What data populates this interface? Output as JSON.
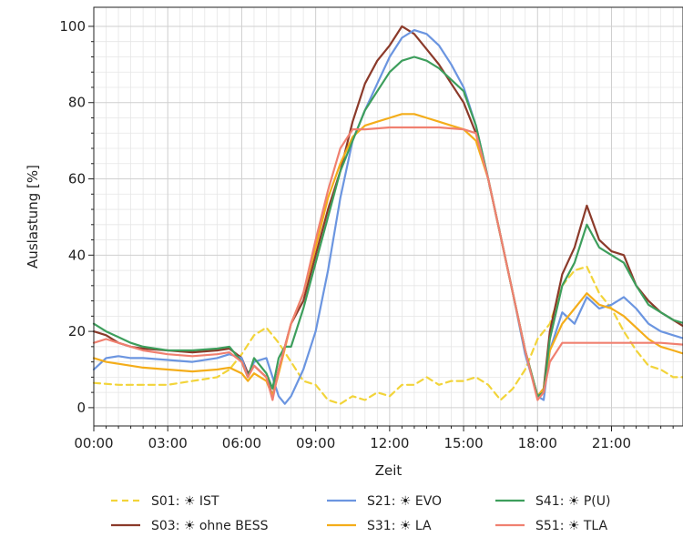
{
  "chart_data": {
    "type": "line",
    "xlabel": "Zeit",
    "ylabel": "Auslastung [%]",
    "ylim": [
      0,
      100
    ],
    "xlim_hours": [
      0,
      24
    ],
    "x_tick_labels": [
      "00:00",
      "03:00",
      "06:00",
      "09:00",
      "12:00",
      "15:00",
      "18:00",
      "21:00"
    ],
    "y_tick_labels": [
      "0",
      "20",
      "40",
      "60",
      "80",
      "100"
    ],
    "grid": true,
    "legend_position": "bottom",
    "series": [
      {
        "name": "S01: ☀ IST",
        "color": "#f2d43a",
        "dash": true,
        "x": [
          0,
          1,
          2,
          3,
          4,
          5,
          5.5,
          6,
          6.5,
          7,
          7.5,
          8,
          8.5,
          9,
          9.5,
          10,
          10.5,
          11,
          11.5,
          12,
          12.5,
          13,
          13.5,
          14,
          14.5,
          15,
          15.5,
          16,
          16.5,
          17,
          17.5,
          18,
          18.5,
          19,
          19.5,
          20,
          20.5,
          21,
          21.5,
          22,
          22.5,
          23,
          23.5,
          24
        ],
        "y": [
          6.5,
          6,
          6,
          6,
          7,
          8,
          10,
          14,
          19,
          21,
          17,
          12,
          7,
          6,
          2,
          1,
          3,
          2,
          4,
          3,
          6,
          6,
          8,
          6,
          7,
          7,
          8,
          6,
          2,
          5,
          10,
          18,
          22,
          32,
          36,
          37,
          30,
          26,
          20,
          15,
          11,
          10,
          8,
          8
        ]
      },
      {
        "name": "S03: ☀ ohne BESS",
        "color": "#8b3a2a",
        "dash": false,
        "x": [
          0,
          0.5,
          1,
          1.5,
          2,
          3,
          4,
          5,
          5.5,
          6,
          6.25,
          6.5,
          7,
          7.25,
          7.5,
          8,
          8.5,
          9,
          9.5,
          10,
          10.5,
          11,
          11.5,
          12,
          12.5,
          13,
          13.5,
          14,
          14.5,
          15,
          15.5,
          16,
          16.5,
          17,
          17.5,
          18,
          18.25,
          18.5,
          19,
          19.5,
          20,
          20.5,
          21,
          21.5,
          22,
          22.5,
          23,
          23.5,
          24
        ],
        "y": [
          20,
          19,
          17,
          16,
          15.5,
          15,
          14.5,
          15,
          15.5,
          13,
          9,
          11,
          8,
          3,
          10,
          22,
          28,
          40,
          52,
          62,
          75,
          85,
          91,
          95,
          100,
          98,
          94,
          90,
          85,
          80,
          72,
          60,
          45,
          30,
          15,
          3,
          5,
          20,
          35,
          42,
          53,
          44,
          41,
          40,
          32,
          28,
          25,
          23,
          21
        ]
      },
      {
        "name": "S21: ☀ EVO",
        "color": "#6b95e0",
        "dash": false,
        "x": [
          0,
          0.5,
          1,
          1.5,
          2,
          3,
          4,
          5,
          5.5,
          6,
          6.25,
          6.5,
          7,
          7.25,
          7.5,
          7.75,
          8,
          8.5,
          9,
          9.5,
          10,
          10.5,
          11,
          11.5,
          12,
          12.5,
          13,
          13.5,
          14,
          14.5,
          15,
          15.5,
          16,
          16.5,
          17,
          17.5,
          18,
          18.25,
          18.5,
          19,
          19.5,
          20,
          20.5,
          21,
          21.5,
          22,
          22.5,
          23,
          23.5,
          24
        ],
        "y": [
          10,
          13,
          13.5,
          13,
          13,
          12.5,
          12,
          13,
          14,
          13,
          8,
          12,
          13,
          8,
          3,
          1,
          3,
          10,
          20,
          36,
          55,
          70,
          78,
          85,
          92,
          97,
          99,
          98,
          95,
          90,
          84,
          74,
          60,
          45,
          30,
          14,
          3,
          2,
          15,
          25,
          22,
          29,
          26,
          27,
          29,
          26,
          22,
          20,
          19,
          18
        ]
      },
      {
        "name": "S31: ☀ LA",
        "color": "#f4ad1a",
        "dash": false,
        "x": [
          0,
          0.5,
          1,
          1.5,
          2,
          3,
          4,
          5,
          5.5,
          6,
          6.25,
          6.5,
          7,
          7.25,
          7.5,
          8,
          8.5,
          9,
          9.5,
          10,
          10.5,
          11,
          11.5,
          12,
          12.5,
          13,
          13.5,
          14,
          14.5,
          15,
          15.5,
          16,
          16.5,
          17,
          17.5,
          18,
          18.25,
          18.5,
          19,
          19.5,
          20,
          20.5,
          21,
          21.5,
          22,
          22.5,
          23,
          23.5,
          24
        ],
        "y": [
          13,
          12,
          11.5,
          11,
          10.5,
          10,
          9.5,
          10,
          10.5,
          9,
          7,
          9,
          7,
          3,
          9,
          22,
          30,
          42,
          55,
          64,
          71,
          74,
          75,
          76,
          77,
          77,
          76,
          75,
          74,
          73,
          70,
          60,
          45,
          30,
          15,
          3,
          5,
          15,
          22,
          26,
          30,
          27,
          26,
          24,
          21,
          18,
          16,
          15,
          14
        ]
      },
      {
        "name": "S41: ☀ P(U)",
        "color": "#3d9e5c",
        "dash": false,
        "x": [
          0,
          0.5,
          1,
          1.5,
          2,
          3,
          4,
          5,
          5.5,
          6,
          6.25,
          6.5,
          7,
          7.25,
          7.5,
          7.75,
          8,
          8.5,
          9,
          9.5,
          10,
          10.5,
          11,
          11.5,
          12,
          12.5,
          13,
          13.5,
          14,
          14.5,
          15,
          15.5,
          16,
          16.5,
          17,
          17.5,
          18,
          18.25,
          18.5,
          19,
          19.5,
          20,
          20.5,
          21,
          21.5,
          22,
          22.5,
          23,
          23.5,
          24
        ],
        "y": [
          22,
          20,
          18.5,
          17,
          16,
          15,
          15,
          15.5,
          16,
          12,
          8,
          13,
          9,
          5,
          13,
          16,
          16,
          26,
          38,
          50,
          62,
          70,
          78,
          83,
          88,
          91,
          92,
          91,
          89,
          86,
          83,
          74,
          60,
          45,
          30,
          15,
          3,
          4,
          18,
          32,
          38,
          48,
          42,
          40,
          38,
          32,
          27,
          25,
          23,
          22
        ]
      },
      {
        "name": "S51: ☀ TLA",
        "color": "#f08070",
        "dash": false,
        "x": [
          0,
          0.5,
          1,
          1.5,
          2,
          3,
          4,
          5,
          5.5,
          6,
          6.25,
          6.5,
          7,
          7.25,
          7.5,
          8,
          8.5,
          9,
          9.5,
          10,
          10.5,
          11,
          12,
          13,
          14,
          15,
          15.5,
          16,
          16.5,
          17,
          17.5,
          18,
          18.25,
          18.5,
          19,
          20,
          21,
          22,
          23,
          24
        ],
        "y": [
          17,
          18,
          17,
          16,
          15,
          14,
          13.5,
          14,
          14.5,
          12,
          8,
          11,
          8,
          2,
          10,
          22,
          30,
          44,
          57,
          68,
          73,
          73,
          73.5,
          73.5,
          73.5,
          73,
          72,
          60,
          45,
          30,
          15,
          2,
          4,
          12,
          17,
          17,
          17,
          17,
          17,
          16.5
        ]
      }
    ]
  }
}
